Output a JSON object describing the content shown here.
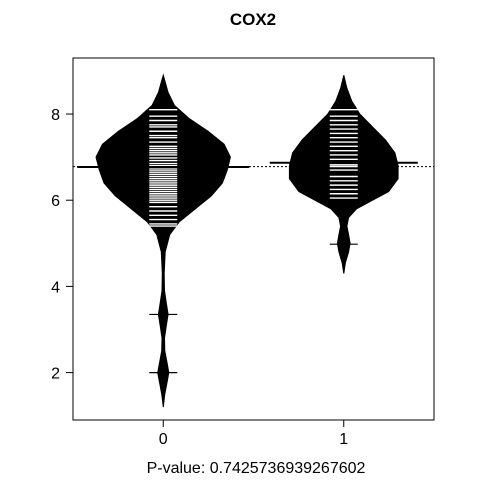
{
  "chart_data": {
    "type": "beanplot",
    "title": "COX2",
    "xlabel": "P-value: 0.7425736939267602",
    "ylabel": "",
    "categories": [
      "0",
      "1"
    ],
    "xlim": [
      -0.5,
      1.5
    ],
    "ylim": [
      0.9,
      9.3
    ],
    "yticks": [
      2,
      4,
      6,
      8
    ],
    "overall_mean": 6.78,
    "grid": false,
    "legend": "none",
    "colors": {
      "bean_fill": "#000000",
      "bean_line": "#ffffff",
      "background": "#ffffff",
      "axis": "#000000"
    },
    "series": [
      {
        "category": "0",
        "mean": 6.77,
        "density": [
          [
            1.2,
            0.0
          ],
          [
            1.5,
            0.01
          ],
          [
            1.8,
            0.025
          ],
          [
            2.0,
            0.035
          ],
          [
            2.2,
            0.025
          ],
          [
            2.5,
            0.01
          ],
          [
            2.8,
            0.008
          ],
          [
            3.1,
            0.02
          ],
          [
            3.35,
            0.03
          ],
          [
            3.6,
            0.02
          ],
          [
            3.9,
            0.008
          ],
          [
            4.3,
            0.006
          ],
          [
            4.8,
            0.012
          ],
          [
            5.2,
            0.04
          ],
          [
            5.5,
            0.1
          ],
          [
            5.8,
            0.2
          ],
          [
            6.1,
            0.3
          ],
          [
            6.4,
            0.37
          ],
          [
            6.7,
            0.4
          ],
          [
            7.0,
            0.42
          ],
          [
            7.3,
            0.38
          ],
          [
            7.6,
            0.28
          ],
          [
            7.9,
            0.16
          ],
          [
            8.2,
            0.07
          ],
          [
            8.5,
            0.03
          ],
          [
            8.8,
            0.008
          ],
          [
            8.9,
            0.0
          ]
        ],
        "points": [
          8.1,
          7.95,
          7.85,
          7.75,
          7.7,
          7.6,
          7.5,
          7.45,
          7.35,
          7.25,
          7.2,
          7.15,
          7.1,
          7.05,
          6.98,
          6.92,
          6.85,
          6.8,
          6.75,
          6.7,
          6.65,
          6.6,
          6.55,
          6.5,
          6.45,
          6.4,
          6.35,
          6.3,
          6.25,
          6.2,
          6.15,
          6.1,
          6.05,
          6.0,
          5.95,
          5.85,
          5.75,
          5.65,
          5.55,
          5.45,
          5.4,
          3.35,
          2.0
        ]
      },
      {
        "category": "1",
        "mean": 6.87,
        "density": [
          [
            4.3,
            0.0
          ],
          [
            4.55,
            0.01
          ],
          [
            4.8,
            0.03
          ],
          [
            5.0,
            0.04
          ],
          [
            5.2,
            0.03
          ],
          [
            5.4,
            0.02
          ],
          [
            5.6,
            0.03
          ],
          [
            5.8,
            0.08
          ],
          [
            6.0,
            0.18
          ],
          [
            6.2,
            0.28
          ],
          [
            6.5,
            0.34
          ],
          [
            6.8,
            0.34
          ],
          [
            7.1,
            0.32
          ],
          [
            7.4,
            0.26
          ],
          [
            7.7,
            0.18
          ],
          [
            8.0,
            0.1
          ],
          [
            8.3,
            0.05
          ],
          [
            8.6,
            0.02
          ],
          [
            8.9,
            0.0
          ]
        ],
        "points": [
          8.1,
          7.95,
          7.85,
          7.75,
          7.65,
          7.55,
          7.45,
          7.35,
          7.25,
          7.15,
          7.05,
          6.95,
          6.82,
          6.78,
          6.7,
          6.55,
          6.45,
          6.35,
          6.25,
          6.15,
          6.05,
          4.98
        ]
      }
    ]
  }
}
